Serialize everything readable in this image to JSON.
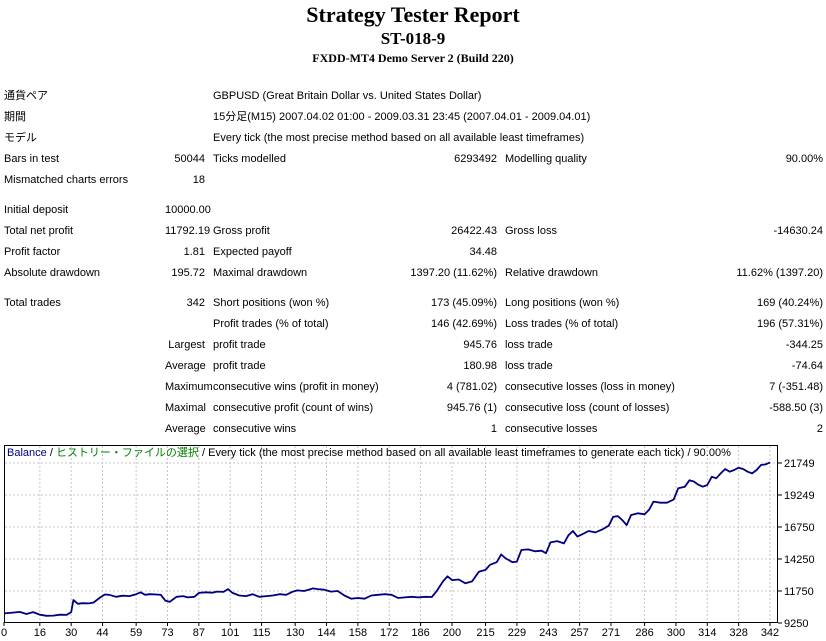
{
  "header": {
    "title": "Strategy Tester Report",
    "subtitle": "ST-018-9",
    "server": "FXDD-MT4 Demo Server 2 (Build 220)"
  },
  "table": {
    "rows": [
      {
        "l1": "通貨ペア",
        "l2": "GBPUSD (Great Britain Dollar vs. United States Dollar)"
      },
      {
        "l1": "期間",
        "l2": "15分足(M15) 2007.04.02 01:00 - 2009.03.31 23:45 (2007.04.01 - 2009.04.01)"
      },
      {
        "l1": "モデル",
        "l2": "Every tick (the most precise method based on all available least timeframes)"
      },
      {
        "l1": "Bars in test",
        "v1": "50044",
        "l2": "Ticks modelled",
        "v2": "6293492",
        "l3": "Modelling quality",
        "v3": "90.00%"
      },
      {
        "l1": "Mismatched charts errors",
        "v1": "18"
      },
      {
        "l1": "Initial deposit",
        "v1": "10000.00"
      },
      {
        "l1": "Total net profit",
        "v1": "11792.19",
        "l2": "Gross profit",
        "v2": "26422.43",
        "l3": "Gross loss",
        "v3": "-14630.24"
      },
      {
        "l1": "Profit factor",
        "v1": "1.81",
        "l2": "Expected payoff",
        "v2": "34.48"
      },
      {
        "l1": "Absolute drawdown",
        "v1": "195.72",
        "l2": "Maximal drawdown",
        "v2": "1397.20 (11.62%)",
        "l3": "Relative drawdown",
        "v3": "11.62% (1397.20)"
      },
      {
        "l1": "Total trades",
        "v1": "342",
        "l2": "Short positions (won %)",
        "v2": "173 (45.09%)",
        "l3": "Long positions (won %)",
        "v3": "169 (40.24%)"
      },
      {
        "l2": "Profit trades (% of total)",
        "v2": "146 (42.69%)",
        "l3": "Loss trades (% of total)",
        "v3": "196 (57.31%)"
      },
      {
        "v1": "Largest",
        "l2": "profit trade",
        "v2": "945.76",
        "l3": "loss trade",
        "v3": "-344.25"
      },
      {
        "v1": "Average",
        "l2": "profit trade",
        "v2": "180.98",
        "l3": "loss trade",
        "v3": "-74.64"
      },
      {
        "v1": "Maximum",
        "l2": "consecutive wins (profit in money)",
        "v2": "4 (781.02)",
        "l3": "consecutive losses (loss in money)",
        "v3": "7 (-351.48)"
      },
      {
        "v1": "Maximal",
        "l2": "consecutive profit (count of wins)",
        "v2": "945.76 (1)",
        "l3": "consecutive loss (count of losses)",
        "v3": "-588.50 (3)"
      },
      {
        "v1": "Average",
        "l2": "consecutive wins",
        "v2": "1",
        "l3": "consecutive losses",
        "v3": "2"
      }
    ]
  },
  "chart": {
    "legend": [
      {
        "text": "Balance",
        "color": "#000080"
      },
      {
        "text": " / ",
        "color": "#000000"
      },
      {
        "text": "ヒストリー・ファイルの選択",
        "color": "#008000"
      },
      {
        "text": " / Every tick (the most precise method based on all available least timeframes to generate each tick) / 90.00%",
        "color": "#000000"
      }
    ],
    "colors": {
      "line": "#000080",
      "grid": "#c6c6c6",
      "border": "#000000",
      "tick_text": "#000000"
    }
  },
  "chart_data": {
    "type": "line",
    "title": "Balance",
    "xlabel": "",
    "ylabel": "",
    "grid": "dashed",
    "xlim": [
      0,
      342
    ],
    "ylim": [
      9250,
      23155
    ],
    "x_ticks": [
      0,
      16,
      30,
      44,
      59,
      73,
      87,
      101,
      115,
      130,
      144,
      158,
      172,
      186,
      200,
      215,
      229,
      243,
      257,
      271,
      286,
      300,
      314,
      328,
      342
    ],
    "y_ticks": [
      21749,
      19249,
      16750,
      14250,
      11750,
      9250
    ],
    "series": [
      {
        "name": "Balance",
        "color": "#000080",
        "x": [
          0,
          4,
          7,
          10,
          13,
          16,
          19,
          22,
          25,
          28,
          30,
          31,
          33,
          35,
          38,
          40,
          43,
          45,
          47,
          50,
          53,
          56,
          59,
          61,
          63,
          65,
          68,
          70,
          72,
          74,
          77,
          80,
          82,
          85,
          87,
          90,
          93,
          95,
          98,
          100,
          102,
          105,
          108,
          111,
          114,
          117,
          120,
          123,
          126,
          129,
          131,
          134,
          136,
          138,
          140,
          143,
          146,
          149,
          152,
          155,
          158,
          161,
          164,
          167,
          170,
          173,
          176,
          179,
          182,
          185,
          188,
          191,
          193,
          196,
          198,
          200,
          203,
          206,
          209,
          212,
          215,
          217,
          220,
          222,
          224,
          227,
          229,
          231,
          234,
          237,
          240,
          242,
          244,
          247,
          250,
          252,
          254,
          256,
          258,
          261,
          264,
          267,
          270,
          272,
          274,
          276,
          278,
          280,
          283,
          286,
          288,
          290,
          293,
          296,
          299,
          301,
          304,
          306,
          308,
          310,
          312,
          314,
          316,
          318,
          320,
          322,
          324,
          326,
          328,
          330,
          332,
          334,
          336,
          338,
          340,
          342
        ],
        "y": [
          10000,
          10060,
          10120,
          9950,
          10100,
          9900,
          9810,
          9830,
          9900,
          9880,
          10100,
          11050,
          10750,
          10800,
          10780,
          10850,
          11250,
          11480,
          11450,
          11300,
          11380,
          11350,
          11500,
          11650,
          11450,
          11500,
          11480,
          11450,
          11000,
          10900,
          11300,
          11350,
          11250,
          11300,
          11600,
          11650,
          11620,
          11700,
          11680,
          11900,
          11600,
          11400,
          11350,
          11500,
          11300,
          11350,
          11400,
          11500,
          11450,
          11700,
          11800,
          11750,
          11850,
          11950,
          11900,
          11850,
          11700,
          11750,
          11400,
          11150,
          11200,
          11150,
          11400,
          11450,
          11500,
          11450,
          11200,
          11250,
          11300,
          11250,
          11300,
          11280,
          11700,
          12500,
          12900,
          12600,
          12650,
          12350,
          12500,
          13250,
          13400,
          13800,
          14000,
          14600,
          14300,
          14000,
          14050,
          14950,
          15000,
          14850,
          14900,
          14700,
          15550,
          15650,
          15470,
          16100,
          16440,
          16000,
          16170,
          16440,
          16330,
          16550,
          16850,
          17550,
          17600,
          17300,
          16900,
          17690,
          17820,
          17740,
          18100,
          18730,
          18650,
          18650,
          18900,
          19770,
          19900,
          20400,
          20300,
          20050,
          19900,
          20030,
          20680,
          20550,
          20940,
          21280,
          21070,
          21200,
          21380,
          21280,
          21070,
          20940,
          21200,
          21590,
          21640,
          21792
        ]
      }
    ]
  }
}
